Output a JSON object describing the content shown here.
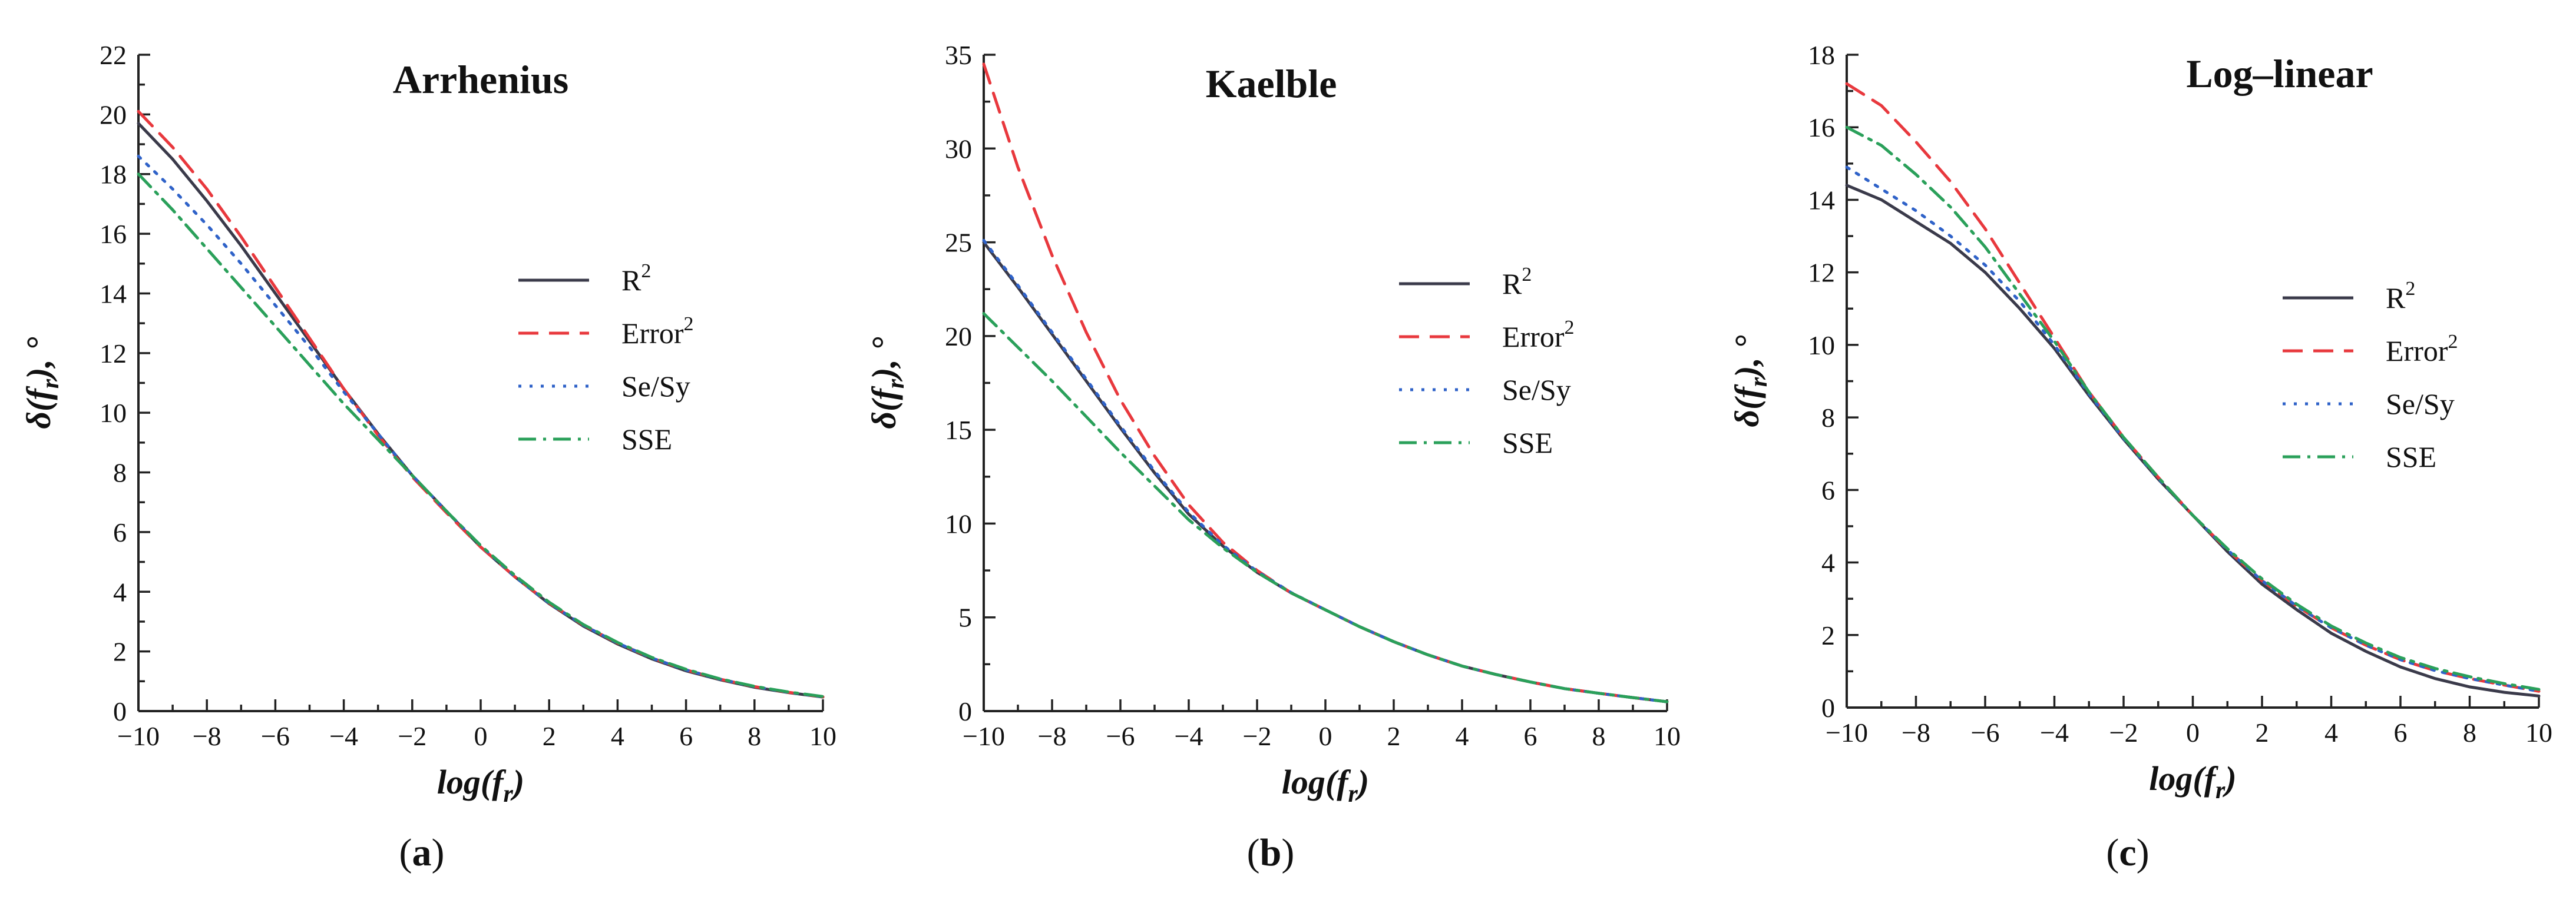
{
  "colors": {
    "R2": "#3a3a4a",
    "Error2": "#e8383d",
    "SeSy": "#2f62c8",
    "SSE": "#2aa05a",
    "axis": "#222222"
  },
  "legend_styles": [
    {
      "key": "R2",
      "dash": "solid"
    },
    {
      "key": "Error2",
      "dash": "long-dash"
    },
    {
      "key": "SeSy",
      "dash": "dot"
    },
    {
      "key": "SSE",
      "dash": "dash-dot"
    }
  ],
  "chart_data": [
    {
      "type": "line",
      "panel_label_prefix": "(",
      "panel_letter": "a",
      "panel_label_suffix": ")",
      "title": "Arrhenius",
      "xlabel_main": "log(f",
      "xlabel_sub": "r",
      "xlabel_end": ")",
      "ylabel_main": "δ(f",
      "ylabel_sub": "r",
      "ylabel_end": "), °",
      "xlim": [
        -10,
        10
      ],
      "ylim": [
        0,
        22
      ],
      "xticks": [
        -10,
        -8,
        -6,
        -4,
        -2,
        0,
        2,
        4,
        6,
        8,
        10
      ],
      "xtick_labels": [
        "−10",
        "−8",
        "−6",
        "−4",
        "−2",
        "0",
        "2",
        "4",
        "6",
        "8",
        "10"
      ],
      "yticks": [
        0,
        2,
        4,
        6,
        8,
        10,
        12,
        14,
        16,
        18,
        20,
        22
      ],
      "ytick_labels": [
        "0",
        "2",
        "4",
        "6",
        "8",
        "10",
        "12",
        "14",
        "16",
        "18",
        "20",
        "22"
      ],
      "legend_position": "right-middle",
      "x": [
        -10,
        -9,
        -8,
        -7,
        -6,
        -5,
        -4,
        -3,
        -2,
        -1,
        0,
        1,
        2,
        3,
        4,
        5,
        6,
        7,
        8,
        9,
        10
      ],
      "series": [
        {
          "key": "R2",
          "name": "R",
          "sup": "2",
          "values": [
            19.7,
            18.5,
            17.1,
            15.6,
            14.0,
            12.4,
            10.8,
            9.3,
            7.9,
            6.7,
            5.5,
            4.5,
            3.6,
            2.85,
            2.25,
            1.75,
            1.35,
            1.05,
            0.8,
            0.62,
            0.47
          ]
        },
        {
          "key": "Error2",
          "name": "Error",
          "sup": "2",
          "values": [
            20.1,
            18.9,
            17.5,
            15.9,
            14.2,
            12.5,
            10.8,
            9.25,
            7.85,
            6.65,
            5.5,
            4.5,
            3.62,
            2.88,
            2.28,
            1.78,
            1.38,
            1.07,
            0.82,
            0.63,
            0.48
          ]
        },
        {
          "key": "SeSy",
          "name": "Se/Sy",
          "sup": "",
          "values": [
            18.6,
            17.5,
            16.3,
            15.0,
            13.6,
            12.2,
            10.7,
            9.3,
            7.9,
            6.7,
            5.55,
            4.5,
            3.62,
            2.88,
            2.28,
            1.78,
            1.38,
            1.07,
            0.82,
            0.63,
            0.48
          ]
        },
        {
          "key": "SSE",
          "name": "SSE",
          "sup": "",
          "values": [
            18.0,
            16.8,
            15.5,
            14.2,
            12.9,
            11.6,
            10.3,
            9.1,
            7.9,
            6.7,
            5.55,
            4.55,
            3.65,
            2.9,
            2.3,
            1.8,
            1.4,
            1.08,
            0.83,
            0.64,
            0.49
          ]
        }
      ]
    },
    {
      "type": "line",
      "panel_label_prefix": "(",
      "panel_letter": "b",
      "panel_label_suffix": ")",
      "title": "Kaelble",
      "xlabel_main": "log(f",
      "xlabel_sub": "r",
      "xlabel_end": ")",
      "ylabel_main": "δ(f",
      "ylabel_sub": "r",
      "ylabel_end": "), °",
      "xlim": [
        -10,
        10
      ],
      "ylim": [
        0,
        35
      ],
      "xticks": [
        -10,
        -8,
        -6,
        -4,
        -2,
        0,
        2,
        4,
        6,
        8,
        10
      ],
      "xtick_labels": [
        "−10",
        "−8",
        "−6",
        "−4",
        "−2",
        "0",
        "2",
        "4",
        "6",
        "8",
        "10"
      ],
      "yticks": [
        0,
        5,
        10,
        15,
        20,
        25,
        30,
        35
      ],
      "ytick_labels": [
        "0",
        "5",
        "10",
        "15",
        "20",
        "25",
        "30",
        "35"
      ],
      "legend_position": "right-middle",
      "x": [
        -10,
        -9,
        -8,
        -7,
        -6,
        -5,
        -4,
        -3,
        -2,
        -1,
        0,
        1,
        2,
        3,
        4,
        5,
        6,
        7,
        8,
        9,
        10
      ],
      "series": [
        {
          "key": "R2",
          "name": "R",
          "sup": "2",
          "values": [
            25.0,
            22.6,
            20.1,
            17.6,
            15.1,
            12.7,
            10.5,
            8.8,
            7.4,
            6.3,
            5.4,
            4.5,
            3.7,
            3.0,
            2.4,
            1.95,
            1.55,
            1.2,
            0.95,
            0.72,
            0.5
          ]
        },
        {
          "key": "Error2",
          "name": "Error",
          "sup": "2",
          "values": [
            34.5,
            29.0,
            24.3,
            20.2,
            16.6,
            13.6,
            11.0,
            9.0,
            7.5,
            6.3,
            5.4,
            4.5,
            3.7,
            3.0,
            2.4,
            1.95,
            1.55,
            1.2,
            0.95,
            0.72,
            0.5
          ]
        },
        {
          "key": "SeSy",
          "name": "Se/Sy",
          "sup": "",
          "values": [
            25.1,
            22.7,
            20.2,
            17.7,
            15.2,
            12.8,
            10.6,
            8.85,
            7.45,
            6.32,
            5.4,
            4.5,
            3.7,
            3.0,
            2.4,
            1.95,
            1.55,
            1.2,
            0.95,
            0.72,
            0.5
          ]
        },
        {
          "key": "SSE",
          "name": "SSE",
          "sup": "",
          "values": [
            21.2,
            19.4,
            17.6,
            15.7,
            13.8,
            12.0,
            10.2,
            8.7,
            7.4,
            6.3,
            5.4,
            4.5,
            3.7,
            3.0,
            2.4,
            1.95,
            1.55,
            1.2,
            0.95,
            0.72,
            0.5
          ]
        }
      ]
    },
    {
      "type": "line",
      "panel_label_prefix": "(",
      "panel_letter": "c",
      "panel_label_suffix": ")",
      "title": "Log–linear",
      "xlabel_main": "log(f",
      "xlabel_sub": "r",
      "xlabel_end": ")",
      "ylabel_main": "δ(f",
      "ylabel_sub": "r",
      "ylabel_end": "), °",
      "xlim": [
        -10,
        10
      ],
      "ylim": [
        0,
        18
      ],
      "xticks": [
        -10,
        -8,
        -6,
        -4,
        -2,
        0,
        2,
        4,
        6,
        8,
        10
      ],
      "xtick_labels": [
        "−10",
        "−8",
        "−6",
        "−4",
        "−2",
        "0",
        "2",
        "4",
        "6",
        "8",
        "10"
      ],
      "yticks": [
        0,
        2,
        4,
        6,
        8,
        10,
        12,
        14,
        16,
        18
      ],
      "ytick_labels": [
        "0",
        "2",
        "4",
        "6",
        "8",
        "10",
        "12",
        "14",
        "16",
        "18"
      ],
      "legend_position": "right-middle",
      "x": [
        -10,
        -9,
        -8,
        -7,
        -6,
        -5,
        -4,
        -3,
        -2,
        -1,
        0,
        1,
        2,
        3,
        4,
        5,
        6,
        7,
        8,
        9,
        10
      ],
      "series": [
        {
          "key": "R2",
          "name": "R",
          "sup": "2",
          "values": [
            14.4,
            14.0,
            13.4,
            12.8,
            12.0,
            11.0,
            9.9,
            8.6,
            7.4,
            6.3,
            5.3,
            4.3,
            3.4,
            2.7,
            2.05,
            1.55,
            1.12,
            0.8,
            0.57,
            0.42,
            0.32
          ]
        },
        {
          "key": "Error2",
          "name": "Error",
          "sup": "2",
          "values": [
            17.2,
            16.6,
            15.6,
            14.5,
            13.2,
            11.7,
            10.2,
            8.7,
            7.45,
            6.35,
            5.3,
            4.35,
            3.5,
            2.8,
            2.2,
            1.72,
            1.32,
            1.02,
            0.8,
            0.62,
            0.45
          ]
        },
        {
          "key": "SeSy",
          "name": "Se/Sy",
          "sup": "",
          "values": [
            14.9,
            14.3,
            13.7,
            13.0,
            12.2,
            11.2,
            10.0,
            8.65,
            7.42,
            6.32,
            5.3,
            4.35,
            3.5,
            2.8,
            2.2,
            1.72,
            1.32,
            1.02,
            0.8,
            0.62,
            0.45
          ]
        },
        {
          "key": "SSE",
          "name": "SSE",
          "sup": "",
          "values": [
            16.0,
            15.5,
            14.7,
            13.8,
            12.7,
            11.4,
            10.1,
            8.7,
            7.45,
            6.35,
            5.3,
            4.38,
            3.55,
            2.85,
            2.25,
            1.78,
            1.38,
            1.08,
            0.85,
            0.66,
            0.5
          ]
        }
      ]
    }
  ]
}
